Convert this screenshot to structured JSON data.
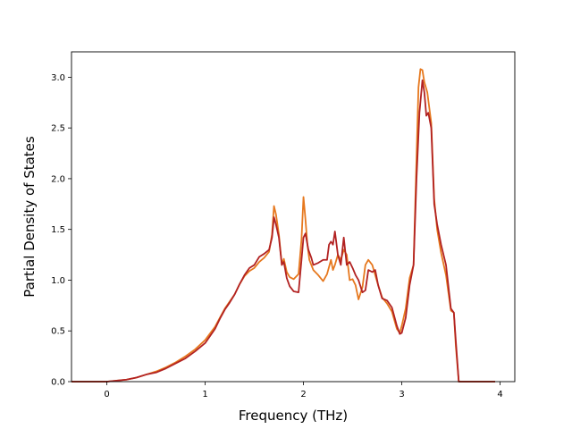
{
  "chart_data": {
    "type": "line",
    "title": "",
    "xlabel": "Frequency (THz)",
    "ylabel": "Partial Density of States",
    "xlim": [
      -0.36,
      4.15
    ],
    "ylim": [
      0.0,
      3.25
    ],
    "xticks": [
      0,
      1,
      2,
      3,
      4
    ],
    "xtick_labels": [
      "0",
      "1",
      "2",
      "3",
      "4"
    ],
    "yticks": [
      0.0,
      0.5,
      1.0,
      1.5,
      2.0,
      2.5,
      3.0
    ],
    "ytick_labels": [
      "0.0",
      "0.5",
      "1.0",
      "1.5",
      "2.0",
      "2.5",
      "3.0"
    ],
    "grid": false,
    "legend": "none",
    "series": [
      {
        "color": "#e6781e",
        "x": [
          -0.36,
          0.0,
          0.1,
          0.2,
          0.3,
          0.4,
          0.5,
          0.6,
          0.7,
          0.8,
          0.9,
          1.0,
          1.1,
          1.15,
          1.2,
          1.25,
          1.3,
          1.35,
          1.4,
          1.45,
          1.5,
          1.55,
          1.6,
          1.65,
          1.68,
          1.7,
          1.72,
          1.75,
          1.78,
          1.8,
          1.83,
          1.86,
          1.9,
          1.95,
          1.98,
          2.0,
          2.02,
          2.04,
          2.06,
          2.1,
          2.15,
          2.2,
          2.24,
          2.28,
          2.3,
          2.32,
          2.35,
          2.38,
          2.41,
          2.44,
          2.47,
          2.5,
          2.53,
          2.56,
          2.6,
          2.63,
          2.66,
          2.7,
          2.73,
          2.76,
          2.8,
          2.85,
          2.9,
          2.95,
          2.98,
          3.0,
          3.04,
          3.08,
          3.12,
          3.15,
          3.17,
          3.19,
          3.21,
          3.23,
          3.26,
          3.28,
          3.3,
          3.33,
          3.36,
          3.4,
          3.45,
          3.5,
          3.53,
          3.55,
          3.58,
          3.6,
          3.7,
          3.95
        ],
        "y": [
          0.0,
          0.0,
          0.01,
          0.02,
          0.04,
          0.07,
          0.1,
          0.14,
          0.19,
          0.25,
          0.32,
          0.41,
          0.54,
          0.63,
          0.72,
          0.79,
          0.86,
          0.96,
          1.04,
          1.09,
          1.12,
          1.18,
          1.22,
          1.28,
          1.45,
          1.73,
          1.65,
          1.45,
          1.15,
          1.21,
          1.08,
          1.03,
          1.01,
          1.06,
          1.4,
          1.82,
          1.6,
          1.35,
          1.2,
          1.1,
          1.05,
          0.99,
          1.06,
          1.2,
          1.1,
          1.15,
          1.25,
          1.2,
          1.3,
          1.25,
          1.0,
          1.01,
          0.95,
          0.81,
          0.93,
          1.15,
          1.2,
          1.15,
          1.05,
          0.95,
          0.83,
          0.77,
          0.69,
          0.52,
          0.48,
          0.55,
          0.72,
          1.02,
          1.15,
          2.2,
          2.9,
          3.08,
          3.07,
          2.95,
          2.85,
          2.7,
          2.55,
          1.8,
          1.5,
          1.27,
          1.05,
          0.7,
          0.68,
          0.35,
          0.0,
          0.0,
          0.0,
          0.0
        ]
      },
      {
        "color": "#b22222",
        "x": [
          -0.36,
          0.0,
          0.1,
          0.2,
          0.3,
          0.4,
          0.5,
          0.6,
          0.7,
          0.8,
          0.9,
          1.0,
          1.1,
          1.15,
          1.2,
          1.25,
          1.3,
          1.35,
          1.4,
          1.45,
          1.5,
          1.55,
          1.6,
          1.65,
          1.68,
          1.7,
          1.72,
          1.75,
          1.78,
          1.8,
          1.83,
          1.86,
          1.9,
          1.95,
          1.98,
          2.0,
          2.02,
          2.05,
          2.08,
          2.1,
          2.15,
          2.2,
          2.24,
          2.26,
          2.28,
          2.3,
          2.32,
          2.35,
          2.38,
          2.41,
          2.44,
          2.47,
          2.5,
          2.53,
          2.56,
          2.6,
          2.63,
          2.66,
          2.7,
          2.73,
          2.76,
          2.8,
          2.85,
          2.9,
          2.95,
          2.98,
          3.0,
          3.04,
          3.08,
          3.12,
          3.15,
          3.18,
          3.21,
          3.23,
          3.25,
          3.27,
          3.3,
          3.33,
          3.36,
          3.4,
          3.45,
          3.5,
          3.53,
          3.55,
          3.58,
          3.6,
          3.7,
          3.95
        ],
        "y": [
          0.0,
          0.0,
          0.01,
          0.02,
          0.04,
          0.07,
          0.09,
          0.13,
          0.18,
          0.23,
          0.3,
          0.38,
          0.52,
          0.62,
          0.71,
          0.78,
          0.86,
          0.96,
          1.05,
          1.12,
          1.15,
          1.23,
          1.26,
          1.3,
          1.42,
          1.62,
          1.55,
          1.42,
          1.15,
          1.18,
          1.02,
          0.94,
          0.89,
          0.88,
          1.2,
          1.42,
          1.46,
          1.3,
          1.22,
          1.15,
          1.17,
          1.2,
          1.2,
          1.35,
          1.38,
          1.35,
          1.48,
          1.25,
          1.15,
          1.42,
          1.15,
          1.18,
          1.12,
          1.05,
          1.0,
          0.88,
          0.9,
          1.1,
          1.08,
          1.1,
          0.95,
          0.82,
          0.8,
          0.73,
          0.55,
          0.47,
          0.48,
          0.63,
          0.95,
          1.15,
          2.0,
          2.65,
          2.97,
          2.85,
          2.62,
          2.65,
          2.5,
          1.75,
          1.55,
          1.35,
          1.15,
          0.72,
          0.68,
          0.4,
          0.0,
          0.0,
          0.0,
          0.0
        ]
      }
    ]
  }
}
